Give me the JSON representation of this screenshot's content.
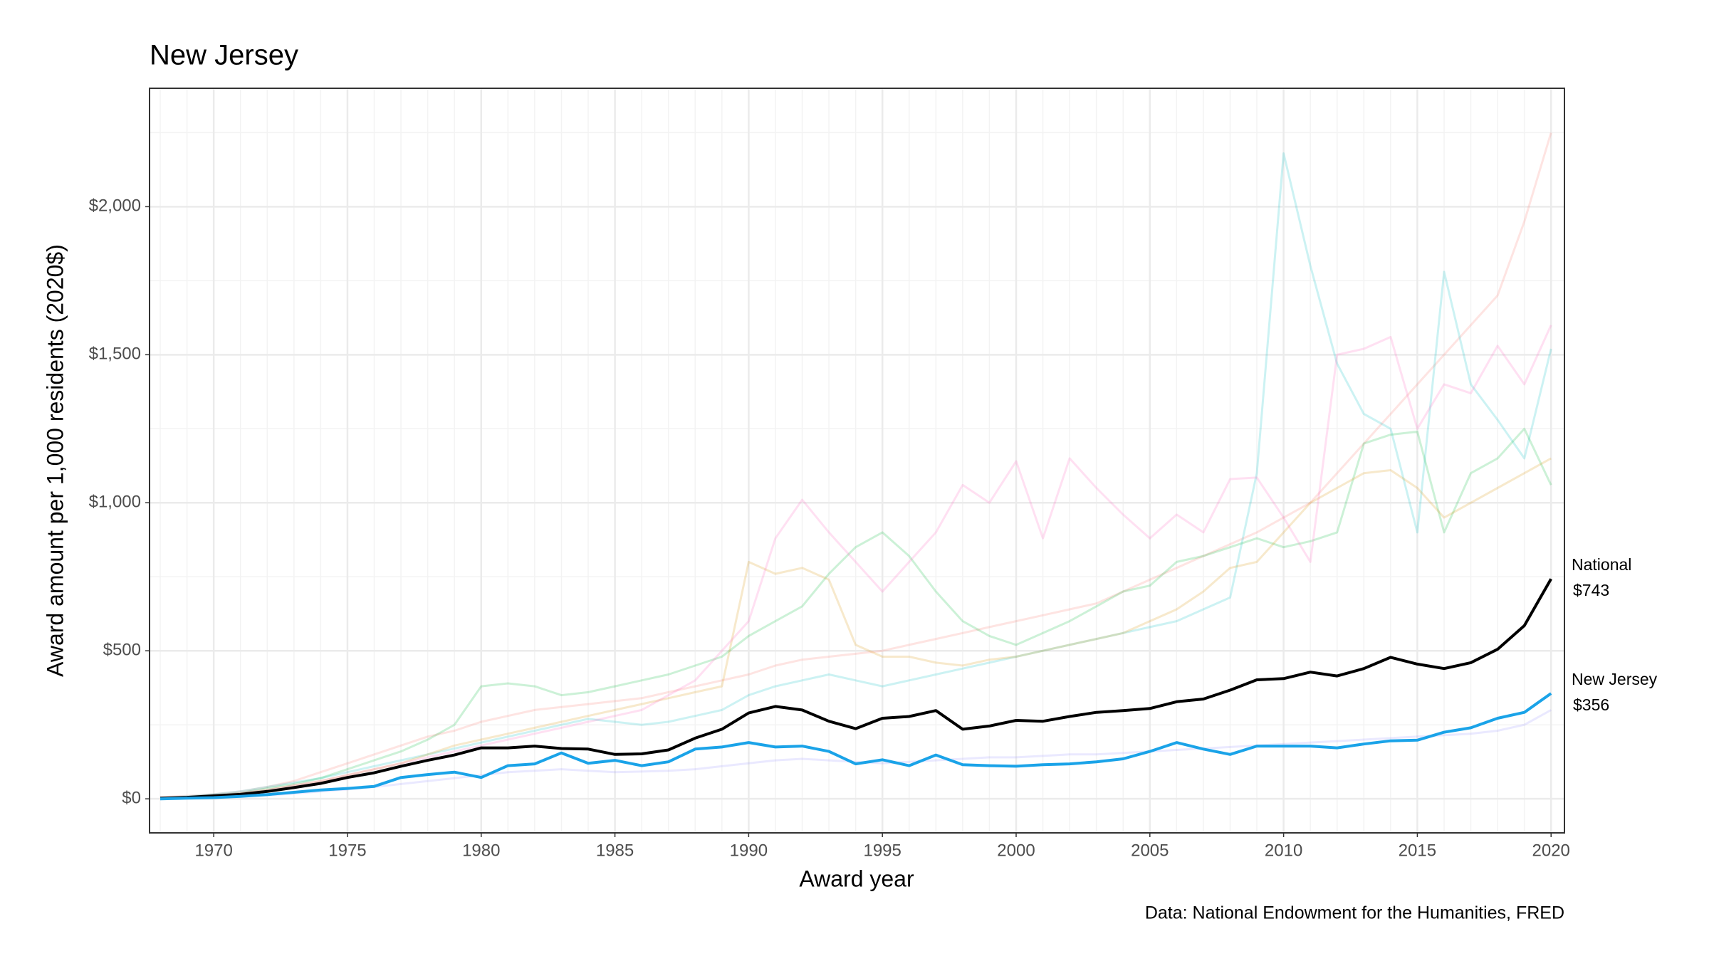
{
  "chart_data": {
    "type": "line",
    "title": "New Jersey",
    "x_label": "Award year",
    "y_label": "Award amount per 1,000 residents (2020$)",
    "caption": "Data: National Endowment for the Humanities, FRED",
    "x": [
      1968,
      1969,
      1970,
      1971,
      1972,
      1973,
      1974,
      1975,
      1976,
      1977,
      1978,
      1979,
      1980,
      1981,
      1982,
      1983,
      1984,
      1985,
      1986,
      1987,
      1988,
      1989,
      1990,
      1991,
      1992,
      1993,
      1994,
      1995,
      1996,
      1997,
      1998,
      1999,
      2000,
      2001,
      2002,
      2003,
      2004,
      2005,
      2006,
      2007,
      2008,
      2009,
      2010,
      2011,
      2012,
      2013,
      2014,
      2015,
      2016,
      2017,
      2018,
      2019,
      2020
    ],
    "xlim": [
      1967.6,
      2020.5
    ],
    "xticks": [
      1970,
      1975,
      1980,
      1985,
      1990,
      1995,
      2000,
      2005,
      2010,
      2015,
      2020
    ],
    "ylim": [
      -115,
      2400
    ],
    "yticks": [
      {
        "value": 0,
        "label": "$0"
      },
      {
        "value": 500,
        "label": "$500"
      },
      {
        "value": 1000,
        "label": "$1,000"
      },
      {
        "value": 1500,
        "label": "$1,500"
      },
      {
        "value": 2000,
        "label": "$2,000"
      }
    ],
    "yminorticks": [
      250,
      750,
      1250,
      1750,
      2250
    ],
    "grid": true,
    "faint_opacity": 0.2,
    "series": [
      {
        "color": "#f8766d",
        "values": [
          5,
          10,
          15,
          25,
          40,
          60,
          90,
          120,
          150,
          180,
          210,
          230,
          260,
          280,
          300,
          310,
          320,
          330,
          340,
          360,
          380,
          400,
          420,
          450,
          470,
          480,
          490,
          500,
          520,
          540,
          560,
          580,
          600,
          620,
          640,
          660,
          700,
          740,
          780,
          820,
          860,
          900,
          950,
          1000,
          1100,
          1200,
          1300,
          1400,
          1500,
          1600,
          1700,
          1950,
          2250
        ]
      },
      {
        "color": "#00bfc4",
        "values": [
          3,
          8,
          15,
          25,
          40,
          55,
          70,
          90,
          110,
          130,
          150,
          170,
          190,
          210,
          230,
          250,
          270,
          260,
          250,
          260,
          280,
          300,
          350,
          380,
          400,
          420,
          400,
          380,
          400,
          420,
          440,
          460,
          480,
          500,
          520,
          540,
          560,
          580,
          600,
          640,
          680,
          1100,
          2180,
          1800,
          1470,
          1300,
          1250,
          900,
          1780,
          1400,
          1280,
          1150,
          1520
        ]
      },
      {
        "color": "#00ba38",
        "values": [
          2,
          6,
          12,
          20,
          35,
          50,
          70,
          100,
          130,
          160,
          200,
          250,
          380,
          390,
          380,
          350,
          360,
          380,
          400,
          420,
          450,
          480,
          550,
          600,
          650,
          760,
          850,
          900,
          820,
          700,
          600,
          550,
          520,
          560,
          600,
          650,
          700,
          720,
          800,
          820,
          850,
          880,
          850,
          870,
          900,
          1200,
          1230,
          1240,
          900,
          1100,
          1150,
          1250,
          1060
        ]
      },
      {
        "color": "#d89000",
        "values": [
          2,
          5,
          10,
          18,
          30,
          45,
          60,
          80,
          100,
          120,
          150,
          180,
          200,
          220,
          240,
          260,
          280,
          300,
          320,
          340,
          360,
          380,
          800,
          760,
          780,
          740,
          520,
          480,
          480,
          460,
          450,
          470,
          480,
          500,
          520,
          540,
          560,
          600,
          640,
          700,
          780,
          800,
          900,
          1000,
          1050,
          1100,
          1110,
          1050,
          950,
          1000,
          1050,
          1100,
          1150
        ]
      },
      {
        "color": "#9590ff",
        "values": [
          1,
          3,
          5,
          8,
          12,
          18,
          25,
          32,
          40,
          50,
          60,
          70,
          80,
          90,
          95,
          100,
          95,
          90,
          92,
          95,
          100,
          110,
          120,
          130,
          135,
          130,
          125,
          120,
          125,
          130,
          135,
          140,
          140,
          145,
          150,
          150,
          155,
          160,
          165,
          170,
          175,
          180,
          185,
          190,
          195,
          200,
          205,
          210,
          215,
          220,
          230,
          250,
          300
        ]
      },
      {
        "color": "#ff62bc",
        "values": [
          2,
          6,
          12,
          20,
          30,
          45,
          60,
          80,
          100,
          120,
          140,
          160,
          180,
          200,
          220,
          240,
          260,
          280,
          300,
          350,
          400,
          500,
          600,
          880,
          1010,
          900,
          800,
          700,
          800,
          900,
          1060,
          1000,
          1140,
          880,
          1150,
          1050,
          960,
          880,
          960,
          900,
          1080,
          1085,
          950,
          800,
          1500,
          1520,
          1560,
          1250,
          1400,
          1370,
          1530,
          1400,
          1600
        ]
      },
      {
        "name": "National",
        "color": "#000000",
        "highlight": true,
        "values": [
          2,
          5,
          10,
          15,
          25,
          38,
          52,
          72,
          88,
          110,
          130,
          148,
          172,
          172,
          178,
          170,
          168,
          150,
          152,
          165,
          205,
          235,
          290,
          312,
          300,
          262,
          237,
          272,
          278,
          298,
          235,
          246,
          265,
          262,
          278,
          292,
          298,
          305,
          328,
          337,
          367,
          402,
          406,
          428,
          415,
          440,
          478,
          455,
          440,
          460,
          505,
          585,
          743
        ],
        "value_labels": [
          null,
          null,
          null,
          null,
          null,
          null,
          null,
          null,
          null,
          null,
          null,
          null,
          null,
          null,
          null,
          null,
          null,
          null,
          null,
          null,
          null,
          null,
          null,
          null,
          null,
          null,
          null,
          null,
          null,
          null,
          null,
          null,
          null,
          null,
          null,
          null,
          null,
          null,
          null,
          null,
          null,
          null,
          null,
          null,
          null,
          null,
          null,
          null,
          null,
          null,
          null,
          null,
          "$743"
        ]
      },
      {
        "name": "New Jersey",
        "color": "#1aa3e8",
        "highlight": true,
        "values": [
          0,
          2,
          4,
          8,
          14,
          22,
          30,
          35,
          42,
          72,
          82,
          90,
          72,
          112,
          118,
          155,
          120,
          130,
          112,
          125,
          168,
          175,
          190,
          175,
          178,
          160,
          118,
          132,
          112,
          148,
          115,
          112,
          110,
          115,
          118,
          125,
          135,
          160,
          190,
          168,
          150,
          178,
          178,
          178,
          172,
          185,
          196,
          198,
          225,
          240,
          272,
          292,
          356
        ],
        "value_labels": [
          null,
          null,
          null,
          null,
          null,
          null,
          null,
          null,
          null,
          null,
          null,
          null,
          null,
          null,
          null,
          null,
          null,
          null,
          null,
          null,
          null,
          null,
          null,
          null,
          null,
          null,
          null,
          null,
          null,
          null,
          null,
          null,
          null,
          null,
          null,
          null,
          null,
          null,
          null,
          null,
          null,
          null,
          null,
          null,
          null,
          null,
          null,
          null,
          null,
          null,
          null,
          null,
          "$356"
        ]
      }
    ]
  }
}
